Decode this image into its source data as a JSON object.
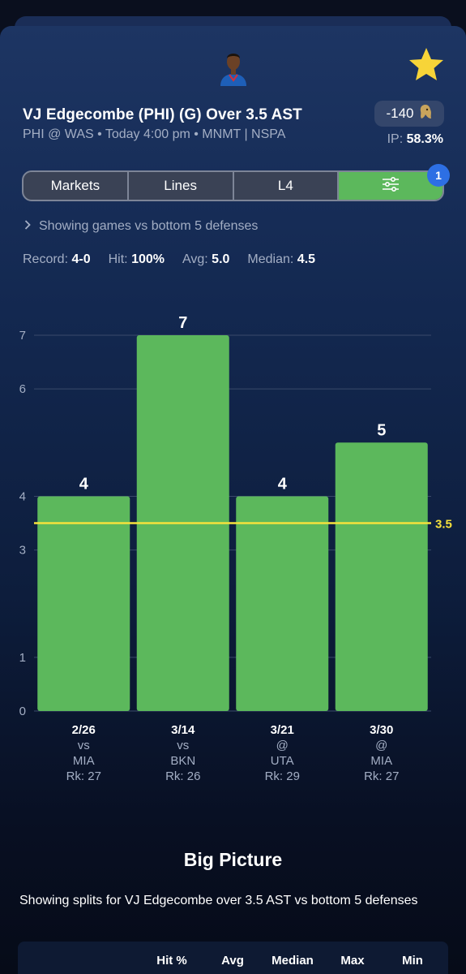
{
  "player": {
    "title": "VJ Edgecombe (PHI) (G) Over 3.5 AST",
    "subtitle": "PHI @ WAS • Today 4:00 pm • MNMT | NSPA",
    "odds": "-140",
    "ip_label": "IP:",
    "ip_value": "58.3%"
  },
  "tabs": [
    {
      "label": "Markets"
    },
    {
      "label": "Lines"
    },
    {
      "label": "L4"
    },
    {
      "icon": "sliders-icon"
    }
  ],
  "filter_badge": "1",
  "filter_note": "Showing games vs bottom 5 defenses",
  "stats": {
    "record_label": "Record:",
    "record_value": "4-0",
    "hit_label": "Hit:",
    "hit_value": "100%",
    "avg_label": "Avg:",
    "avg_value": "5.0",
    "median_label": "Median:",
    "median_value": "4.5"
  },
  "chart_data": {
    "type": "bar",
    "categories": [
      "2/26",
      "3/14",
      "3/21",
      "3/30"
    ],
    "venue": [
      "vs",
      "vs",
      "@",
      "@"
    ],
    "opponent": [
      "MIA",
      "BKN",
      "UTA",
      "MIA"
    ],
    "rank": [
      "Rk: 27",
      "Rk: 26",
      "Rk: 29",
      "Rk: 27"
    ],
    "values": [
      4,
      7,
      4,
      5
    ],
    "yticks": [
      0,
      1,
      3,
      4,
      6,
      7
    ],
    "ylim": [
      0,
      7
    ],
    "threshold": 3.5,
    "threshold_label": "3.5",
    "colors": {
      "bar": "#5cb85c",
      "threshold": "#f5e13c",
      "grid": "#3a4a6a",
      "tick": "#a3aec4"
    }
  },
  "big_picture": {
    "title": "Big Picture",
    "description": "Showing splits for VJ Edgecombe over 3.5 AST vs bottom 5 defenses",
    "columns": [
      "Hit %",
      "Avg",
      "Median",
      "Max",
      "Min"
    ]
  },
  "colors": {
    "accent_green": "#5cb85c",
    "star": "#f7d438",
    "badge": "#2d6fe4"
  }
}
